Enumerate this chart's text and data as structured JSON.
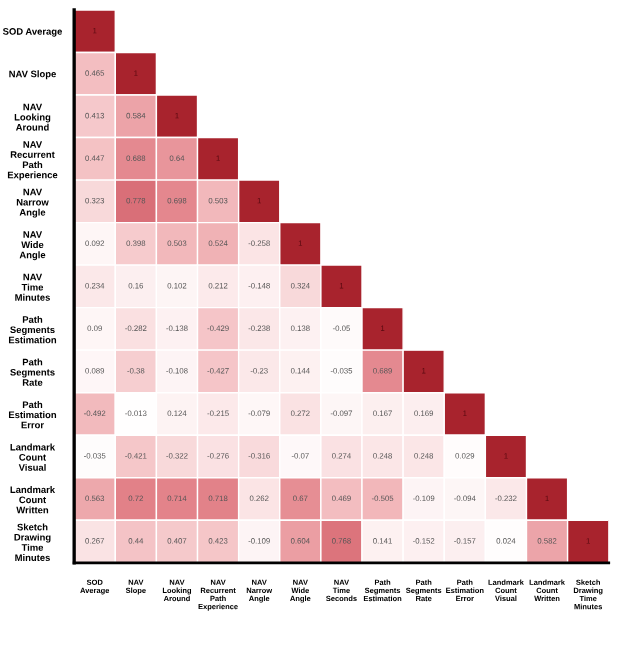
{
  "chart_data": {
    "type": "heatmap",
    "categories": [
      "SOD Average",
      "NAV Slope",
      "NAV Looking Around",
      "NAV Recurrent Path Experience",
      "NAV Narrow Angle",
      "NAV Wide Angle",
      "NAV Time Seconds",
      "Path Segments Estimation",
      "Path Segments Rate",
      "Path Estimation Error",
      "Landmark Count Visual",
      "Landmark Count Written",
      "Sketch Drawing Time Minutes"
    ],
    "y_categories": [
      "SOD Average",
      "NAV Slope",
      "NAV Looking Around",
      "NAV Recurrent Path Experience",
      "NAV Narrow Angle",
      "NAV Wide Angle",
      "NAV Time Minutes",
      "Path Segments Estimation",
      "Path Segments Rate",
      "Path Estimation Error",
      "Landmark Count Visual",
      "Landmark Count Written",
      "Sketch Drawing Time Minutes"
    ],
    "cells": [
      [
        1,
        null,
        null,
        null,
        null,
        null,
        null,
        null,
        null,
        null,
        null,
        null,
        null
      ],
      [
        0.465,
        1,
        null,
        null,
        null,
        null,
        null,
        null,
        null,
        null,
        null,
        null,
        null
      ],
      [
        0.413,
        0.584,
        1,
        null,
        null,
        null,
        null,
        null,
        null,
        null,
        null,
        null,
        null
      ],
      [
        0.447,
        0.688,
        0.64,
        1,
        null,
        null,
        null,
        null,
        null,
        null,
        null,
        null,
        null
      ],
      [
        0.323,
        0.778,
        0.698,
        0.503,
        1,
        null,
        null,
        null,
        null,
        null,
        null,
        null,
        null
      ],
      [
        0.092,
        0.398,
        0.503,
        0.524,
        -0.258,
        1,
        null,
        null,
        null,
        null,
        null,
        null,
        null
      ],
      [
        0.234,
        0.16,
        0.102,
        0.212,
        -0.148,
        0.324,
        1,
        null,
        null,
        null,
        null,
        null,
        null
      ],
      [
        0.09,
        -0.282,
        -0.138,
        -0.429,
        -0.238,
        0.138,
        -0.05,
        1,
        null,
        null,
        null,
        null,
        null
      ],
      [
        0.089,
        -0.38,
        -0.108,
        -0.427,
        -0.23,
        0.144,
        -0.035,
        0.689,
        1,
        null,
        null,
        null,
        null
      ],
      [
        -0.492,
        -0.013,
        0.124,
        -0.215,
        -0.079,
        0.272,
        -0.097,
        0.167,
        0.169,
        1,
        null,
        null,
        null
      ],
      [
        -0.035,
        -0.421,
        -0.322,
        -0.276,
        -0.316,
        -0.07,
        0.274,
        0.248,
        0.248,
        0.029,
        1,
        null,
        null
      ],
      [
        0.563,
        0.72,
        0.714,
        0.718,
        0.262,
        0.67,
        0.469,
        -0.505,
        -0.109,
        -0.094,
        -0.232,
        1,
        null
      ],
      [
        0.267,
        0.44,
        0.407,
        0.423,
        -0.109,
        0.604,
        0.768,
        0.141,
        -0.152,
        -0.157,
        0.024,
        0.582,
        1
      ]
    ],
    "colors": [
      "#ffffff",
      "#fbe6e7",
      "#f2b8bb",
      "#e07a82",
      "#a8232d"
    ],
    "data_labels": true
  }
}
